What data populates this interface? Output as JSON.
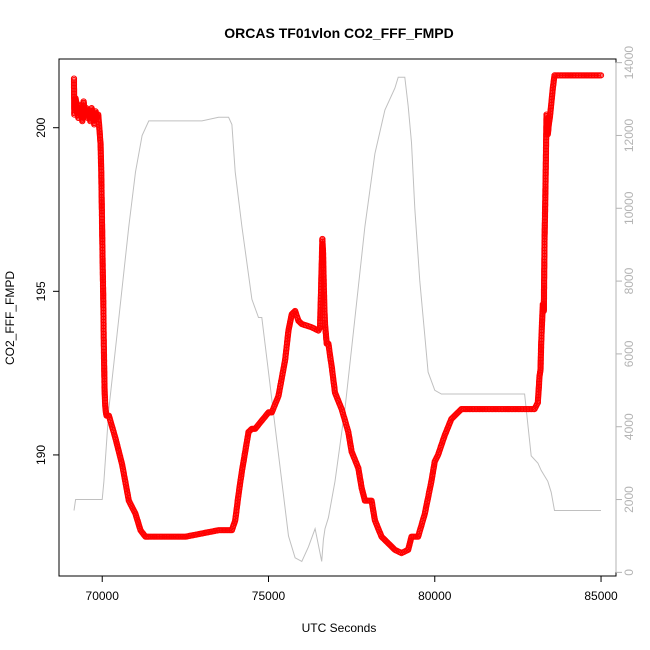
{
  "chart_data": {
    "type": "line",
    "title": "ORCAS TF01vlon CO2_FFF_FMPD",
    "xlabel": "UTC Seconds",
    "ylabel": "CO2_FFF_FMPD",
    "xlim": [
      68700,
      85450
    ],
    "ylim": [
      186.3,
      202.1
    ],
    "y2lim": [
      -100,
      14100
    ],
    "x_ticks": [
      70000,
      75000,
      80000,
      85000
    ],
    "y_ticks": [
      190,
      195,
      200
    ],
    "y2_ticks": [
      0,
      2000,
      4000,
      6000,
      8000,
      10000,
      12000,
      14000
    ],
    "grid": false,
    "colors": {
      "primary": "#ff0000",
      "secondary": "#c0c0c0",
      "frame": "#000000",
      "right_axis": "#b3b3b3"
    },
    "series": [
      {
        "axis": "left",
        "x": [
          69150,
          69160,
          69200,
          69240,
          69280,
          69320,
          69360,
          69400,
          69440,
          69480,
          69520,
          69560,
          69600,
          69640,
          69680,
          69720,
          69760,
          69800,
          69840,
          69880,
          69920,
          69950,
          69970,
          69990,
          70010,
          70030,
          70050,
          70070,
          70090,
          70110,
          70130,
          70200,
          70400,
          70600,
          70800,
          71000,
          71150,
          71300,
          71400,
          72000,
          72500,
          73000,
          73500,
          73900,
          74000,
          74100,
          74200,
          74300,
          74400,
          74500,
          74600,
          75000,
          75100,
          75300,
          75500,
          75600,
          75700,
          75800,
          75900,
          76000,
          76300,
          76500,
          76550,
          76600,
          76620,
          76640,
          76660,
          76680,
          76700,
          76750,
          76800,
          76900,
          77000,
          77200,
          77400,
          77500,
          77700,
          77800,
          77900,
          78100,
          78200,
          78400,
          78600,
          78800,
          79000,
          79200,
          79300,
          79500,
          79700,
          79900,
          80000,
          80100,
          80300,
          80500,
          80800,
          81000,
          82000,
          82600,
          83000,
          83100,
          83150,
          83180,
          83200,
          83220,
          83250,
          83280,
          83300,
          83330,
          83360,
          83400,
          83430,
          83460,
          83500,
          83550,
          83600,
          85000
        ],
        "y": [
          201.5,
          200.4,
          200.9,
          200.6,
          200.3,
          200.7,
          200.5,
          200.2,
          200.8,
          200.4,
          200.6,
          200.3,
          200.5,
          200.2,
          200.6,
          200.4,
          200.1,
          200.5,
          200.3,
          200.4,
          199.9,
          199.5,
          198.7,
          197.4,
          196.0,
          194.8,
          193.2,
          192.0,
          191.5,
          191.3,
          191.2,
          191.2,
          190.5,
          189.7,
          188.6,
          188.2,
          187.7,
          187.5,
          187.5,
          187.5,
          187.5,
          187.6,
          187.7,
          187.7,
          188.0,
          188.8,
          189.5,
          190.1,
          190.7,
          190.8,
          190.8,
          191.3,
          191.3,
          191.8,
          192.9,
          193.8,
          194.3,
          194.4,
          194.1,
          194.0,
          193.9,
          193.8,
          193.9,
          195.8,
          196.6,
          196.2,
          195.3,
          194.5,
          194.0,
          193.4,
          193.4,
          192.7,
          191.9,
          191.4,
          190.7,
          190.1,
          189.6,
          189.0,
          188.6,
          188.6,
          188.0,
          187.5,
          187.3,
          187.1,
          187.0,
          187.1,
          187.5,
          187.5,
          188.2,
          189.2,
          189.8,
          190.0,
          190.6,
          191.1,
          191.4,
          191.4,
          191.4,
          191.4,
          191.4,
          191.6,
          192.4,
          192.6,
          193.4,
          193.9,
          194.6,
          194.4,
          196.5,
          198.2,
          200.4,
          199.8,
          200.1,
          200.3,
          200.7,
          201.2,
          201.6,
          201.6
        ]
      },
      {
        "axis": "right",
        "x": [
          69150,
          69200,
          69300,
          70000,
          70050,
          70200,
          70500,
          70800,
          71000,
          71200,
          71400,
          72000,
          73000,
          73500,
          73800,
          73900,
          74000,
          74200,
          74500,
          74700,
          74800,
          75000,
          75200,
          75400,
          75600,
          75800,
          76000,
          76200,
          76400,
          76600,
          76650,
          76700,
          76800,
          77000,
          77300,
          77600,
          77900,
          78200,
          78500,
          78800,
          78900,
          79000,
          79100,
          79200,
          79300,
          79400,
          79550,
          79700,
          79800,
          80000,
          80200,
          80400,
          80600,
          80800,
          81000,
          81500,
          82000,
          82500,
          82700,
          82900,
          83100,
          83200,
          83400,
          83500,
          83600,
          84000,
          85000
        ],
        "y": [
          1700,
          2000,
          2000,
          2000,
          2500,
          4500,
          7000,
          9500,
          11000,
          12000,
          12400,
          12400,
          12400,
          12500,
          12500,
          12300,
          11000,
          9500,
          7500,
          7000,
          7000,
          5500,
          4000,
          2500,
          1000,
          400,
          300,
          700,
          1200,
          300,
          900,
          1200,
          1500,
          2500,
          4500,
          7000,
          9500,
          11500,
          12700,
          13300,
          13600,
          13600,
          13600,
          12800,
          11800,
          10000,
          8000,
          6500,
          5500,
          5000,
          4900,
          4900,
          4900,
          4900,
          4900,
          4900,
          4900,
          4900,
          4900,
          3200,
          3000,
          2800,
          2500,
          2200,
          1700,
          1700,
          1700
        ]
      }
    ]
  }
}
